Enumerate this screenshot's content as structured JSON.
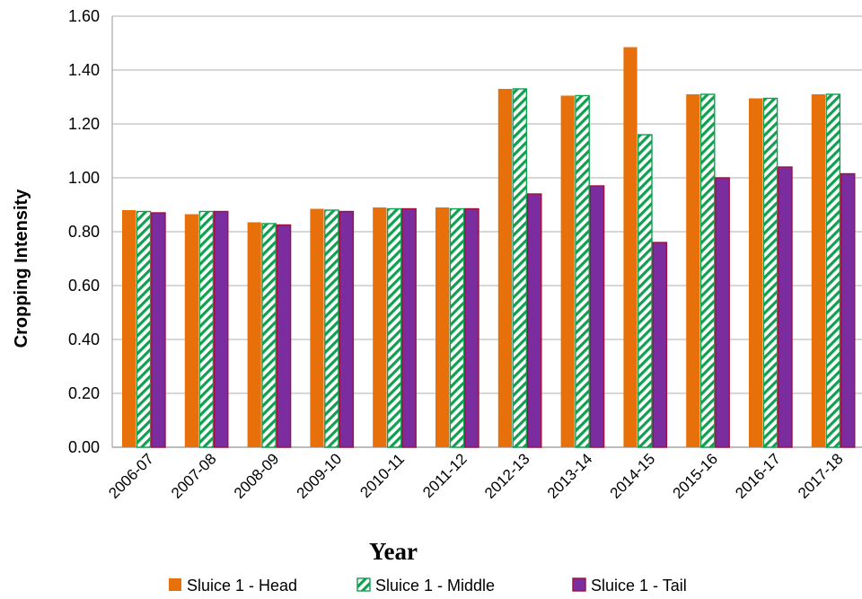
{
  "chart_data": {
    "type": "bar",
    "xlabel": "Year",
    "ylabel": "Cropping Intensity",
    "ylim": [
      0,
      1.6
    ],
    "yticks": [
      "0.00",
      "0.20",
      "0.40",
      "0.60",
      "0.80",
      "1.00",
      "1.20",
      "1.40",
      "1.60"
    ],
    "grid": true,
    "legend_position": "bottom",
    "categories": [
      "2006-07",
      "2007-08",
      "2008-09",
      "2009-10",
      "2010-11",
      "2011-12",
      "2012-13",
      "2013-14",
      "2014-15",
      "2015-16",
      "2016-17",
      "2017-18"
    ],
    "series": [
      {
        "name": "Sluice 1 - Head",
        "color": "#E8700A",
        "pattern": "solid",
        "values": [
          0.88,
          0.865,
          0.835,
          0.885,
          0.89,
          0.89,
          1.33,
          1.305,
          1.485,
          1.31,
          1.295,
          1.31
        ]
      },
      {
        "name": "Sluice 1 - Middle",
        "color": "#10A050",
        "pattern": "hatch",
        "values": [
          0.875,
          0.875,
          0.83,
          0.88,
          0.885,
          0.885,
          1.33,
          1.305,
          1.16,
          1.31,
          1.295,
          1.31
        ]
      },
      {
        "name": "Sluice 1 - Tail",
        "color": "#7B2C9E",
        "pattern": "solid",
        "values": [
          0.87,
          0.875,
          0.825,
          0.875,
          0.885,
          0.885,
          0.94,
          0.97,
          0.76,
          1.0,
          1.04,
          1.015
        ]
      }
    ]
  }
}
